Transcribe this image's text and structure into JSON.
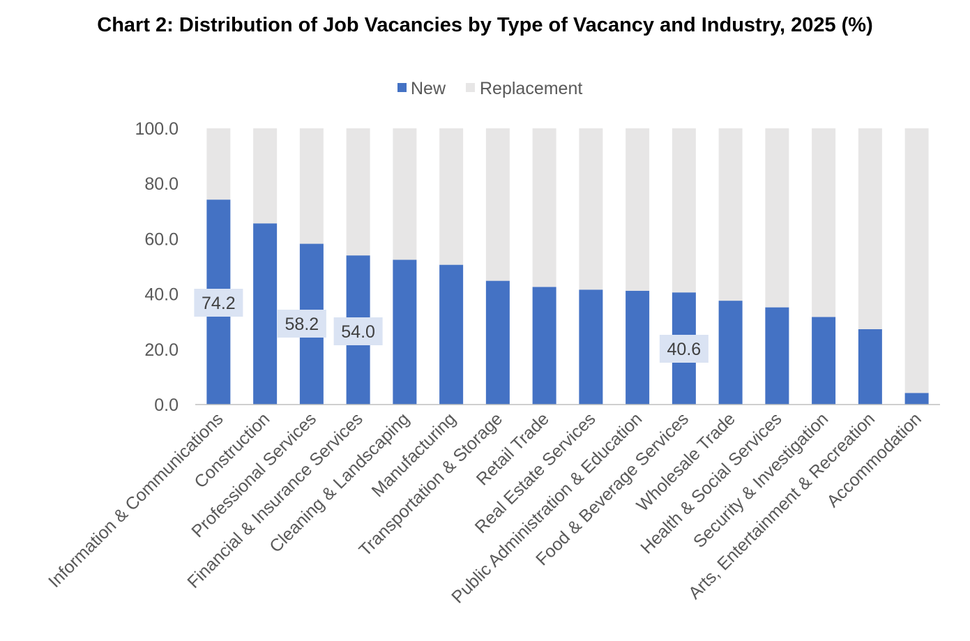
{
  "chart_data": {
    "type": "bar",
    "stacked": true,
    "title": "Chart 2: Distribution of Job Vacancies by Type of Vacancy and Industry, 2025 (%)",
    "xlabel": "",
    "ylabel": "",
    "ylim": [
      0,
      100
    ],
    "yticks": [
      "0.0",
      "20.0",
      "40.0",
      "60.0",
      "80.0",
      "100.0"
    ],
    "grid": false,
    "legend_position": "top",
    "categories": [
      "Information & Communications",
      "Construction",
      "Professional Services",
      "Financial & Insurance Services",
      "Cleaning & Landscaping",
      "Manufacturing",
      "Transportation & Storage",
      "Retail Trade",
      "Real Estate Services",
      "Public Administration & Education",
      "Food & Beverage Services",
      "Wholesale Trade",
      "Health & Social Services",
      "Security & Investigation",
      "Arts, Entertainment & Recreation",
      "Accommodation"
    ],
    "series": [
      {
        "name": "New",
        "color": "#4472C4",
        "values": [
          74.2,
          65.6,
          58.2,
          54.0,
          52.4,
          50.6,
          44.8,
          42.6,
          41.6,
          41.2,
          40.6,
          37.6,
          35.2,
          31.7,
          27.3,
          4.2
        ]
      },
      {
        "name": "Replacement",
        "color": "#E7E6E6",
        "values": [
          25.8,
          34.4,
          41.8,
          46.0,
          47.6,
          49.4,
          55.2,
          57.4,
          58.4,
          58.8,
          59.4,
          62.4,
          64.8,
          68.3,
          72.7,
          95.8
        ]
      }
    ],
    "data_labels": [
      {
        "category": "Information & Communications",
        "text": "74.2"
      },
      {
        "category": "Professional Services",
        "text": "58.2"
      },
      {
        "category": "Financial & Insurance Services",
        "text": "54.0"
      },
      {
        "category": "Food & Beverage Services",
        "text": "40.6"
      }
    ]
  }
}
